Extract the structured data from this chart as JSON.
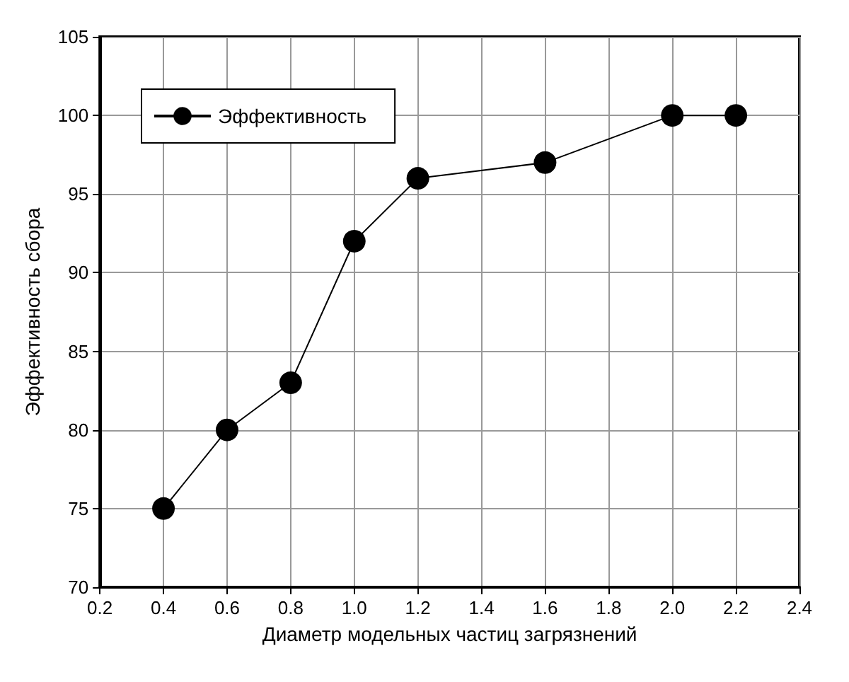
{
  "chart_data": {
    "type": "line",
    "xlabel": "Диаметр модельных частиц загрязнений",
    "ylabel": "Эффективность сбора",
    "x": [
      0.4,
      0.6,
      0.8,
      1.0,
      1.2,
      1.6,
      2.0,
      2.2
    ],
    "series": [
      {
        "name": "Эффективность",
        "color": "#000000",
        "values": [
          75,
          80,
          83,
          92,
          96,
          97,
          100,
          100
        ]
      }
    ],
    "xlim": [
      0.2,
      2.4
    ],
    "xticks": [
      0.2,
      0.4,
      0.6,
      0.8,
      {
        "value": 1,
        "label": "1.0"
      },
      1.2,
      1.4,
      1.6,
      1.8,
      {
        "value": 2,
        "label": "2.0"
      },
      2.2,
      2.4
    ],
    "ylim": [
      70,
      105
    ],
    "yticks": [
      70,
      75,
      80,
      85,
      90,
      95,
      100,
      105
    ],
    "grid": true,
    "legend": "top left",
    "marker": "circle",
    "line_style": "solid"
  }
}
